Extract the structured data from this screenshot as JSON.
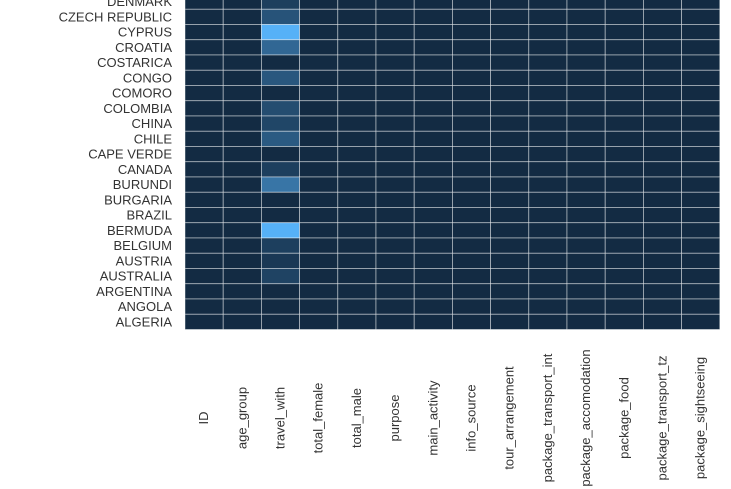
{
  "chart_data": {
    "type": "heatmap",
    "title": "",
    "xlabel": "",
    "ylabel": "",
    "rows": [
      "DENMARK",
      "CZECH REPUBLIC",
      "CYPRUS",
      "CROATIA",
      "COSTARICA",
      "CONGO",
      "COMORO",
      "COLOMBIA",
      "CHINA",
      "CHILE",
      "CAPE VERDE",
      "CANADA",
      "BURUNDI",
      "BURGARIA",
      "BRAZIL",
      "BERMUDA",
      "BELGIUM",
      "AUSTRIA",
      "AUSTRALIA",
      "ARGENTINA",
      "ANGOLA",
      "ALGERIA"
    ],
    "columns": [
      "ID",
      "age_group",
      "travel_with",
      "total_female",
      "total_male",
      "purpose",
      "main_activity",
      "info_source",
      "tour_arrangement",
      "package_transport_int",
      "package_accomodation",
      "package_food",
      "package_transport_tz",
      "package_sightseeing"
    ],
    "values": [
      [
        0,
        0,
        0.15,
        0,
        0,
        0,
        0,
        0,
        0,
        0,
        0,
        0,
        0,
        0
      ],
      [
        0,
        0,
        0.3,
        0,
        0,
        0,
        0,
        0,
        0,
        0,
        0,
        0,
        0,
        0
      ],
      [
        0,
        0,
        1.0,
        0,
        0,
        0,
        0,
        0,
        0,
        0,
        0,
        0,
        0,
        0
      ],
      [
        0,
        0,
        0.45,
        0,
        0,
        0,
        0,
        0,
        0,
        0,
        0,
        0,
        0,
        0
      ],
      [
        0,
        0,
        0.0,
        0,
        0,
        0,
        0,
        0,
        0,
        0,
        0,
        0,
        0,
        0
      ],
      [
        0,
        0,
        0.33,
        0,
        0,
        0,
        0,
        0,
        0,
        0,
        0,
        0,
        0,
        0
      ],
      [
        0,
        0,
        0.0,
        0,
        0,
        0,
        0,
        0,
        0,
        0,
        0,
        0,
        0,
        0
      ],
      [
        0,
        0,
        0.25,
        0,
        0,
        0,
        0,
        0,
        0,
        0,
        0,
        0,
        0,
        0
      ],
      [
        0,
        0,
        0.2,
        0,
        0,
        0,
        0,
        0,
        0,
        0,
        0,
        0,
        0,
        0
      ],
      [
        0,
        0,
        0.35,
        0,
        0,
        0,
        0,
        0,
        0,
        0,
        0,
        0,
        0,
        0
      ],
      [
        0,
        0,
        0.0,
        0,
        0,
        0,
        0,
        0,
        0,
        0,
        0,
        0,
        0,
        0
      ],
      [
        0,
        0,
        0.15,
        0,
        0,
        0,
        0,
        0,
        0,
        0,
        0,
        0,
        0,
        0
      ],
      [
        0,
        0,
        0.55,
        0,
        0,
        0,
        0,
        0,
        0,
        0,
        0,
        0,
        0,
        0
      ],
      [
        0,
        0,
        0.0,
        0,
        0,
        0,
        0,
        0,
        0,
        0,
        0,
        0,
        0,
        0
      ],
      [
        0,
        0,
        0.0,
        0,
        0,
        0,
        0,
        0,
        0,
        0,
        0,
        0,
        0,
        0
      ],
      [
        0,
        0,
        1.0,
        0,
        0,
        0,
        0,
        0,
        0,
        0,
        0,
        0,
        0,
        0
      ],
      [
        0,
        0,
        0.15,
        0,
        0,
        0,
        0,
        0,
        0,
        0,
        0,
        0,
        0,
        0
      ],
      [
        0,
        0,
        0.1,
        0,
        0,
        0,
        0,
        0,
        0,
        0,
        0,
        0,
        0,
        0
      ],
      [
        0,
        0,
        0.18,
        0,
        0,
        0,
        0,
        0,
        0,
        0,
        0,
        0,
        0,
        0
      ],
      [
        0,
        0,
        0.0,
        0,
        0,
        0,
        0,
        0,
        0,
        0,
        0,
        0,
        0,
        0
      ],
      [
        0,
        0,
        0.0,
        0,
        0,
        0,
        0,
        0,
        0,
        0,
        0,
        0,
        0,
        0
      ],
      [
        0,
        0,
        0.0,
        0,
        0,
        0,
        0,
        0,
        0,
        0,
        0,
        0,
        0,
        0
      ]
    ],
    "color_low": "#132b43",
    "color_high": "#56b1f7",
    "grid_color": "#ffffff",
    "grid": true,
    "legend": "none"
  }
}
